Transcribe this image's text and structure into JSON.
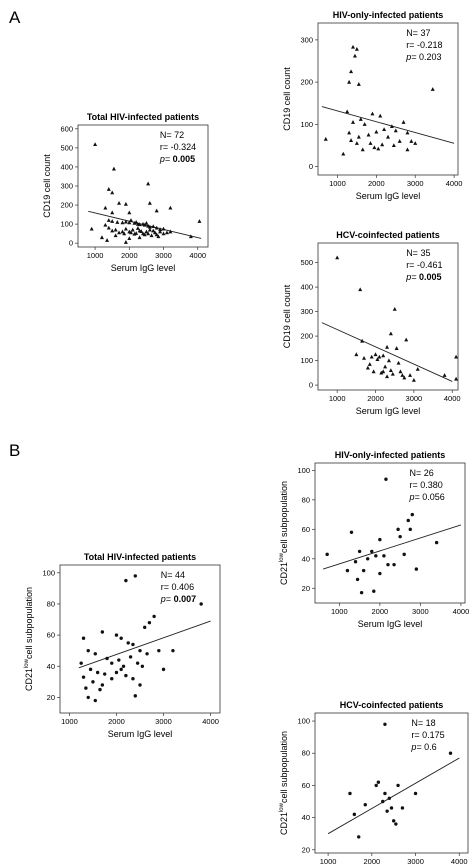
{
  "panel_labels": [
    "A",
    "B"
  ],
  "chart_data": [
    {
      "type": "scatter",
      "panel": "A",
      "title": "Total HIV-infected patients",
      "xlabel": "Serum IgG level",
      "ylabel": "CD19 cell count",
      "ylabel_sup": "",
      "xlim": [
        500,
        4300
      ],
      "ylim": [
        -20,
        620
      ],
      "xticks": [
        1000,
        2000,
        3000,
        4000
      ],
      "yticks": [
        0,
        100,
        200,
        300,
        400,
        500,
        600
      ],
      "grid": false,
      "marker": "triangle",
      "stats": {
        "n": "N= 72",
        "r": "r= -0.324",
        "p_label": "p=",
        "p_value": "0.005",
        "p_bold": true
      },
      "regression": {
        "x": [
          800,
          4100
        ],
        "y": [
          167,
          25
        ]
      },
      "points": [
        [
          1000,
          518
        ],
        [
          1550,
          390
        ],
        [
          1400,
          283
        ],
        [
          1500,
          265
        ],
        [
          2550,
          312
        ],
        [
          1700,
          210
        ],
        [
          1900,
          205
        ],
        [
          2600,
          210
        ],
        [
          1300,
          185
        ],
        [
          1500,
          160
        ],
        [
          2000,
          160
        ],
        [
          2800,
          170
        ],
        [
          3200,
          185
        ],
        [
          900,
          75
        ],
        [
          1400,
          120
        ],
        [
          1500,
          115
        ],
        [
          1650,
          110
        ],
        [
          1800,
          108
        ],
        [
          1900,
          112
        ],
        [
          2000,
          108
        ],
        [
          2050,
          120
        ],
        [
          2150,
          105
        ],
        [
          2200,
          110
        ],
        [
          2250,
          100
        ],
        [
          2300,
          98
        ],
        [
          2400,
          100
        ],
        [
          2450,
          95
        ],
        [
          2500,
          105
        ],
        [
          2550,
          90
        ],
        [
          2600,
          85
        ],
        [
          2700,
          88
        ],
        [
          2800,
          80
        ],
        [
          2900,
          72
        ],
        [
          3000,
          75
        ],
        [
          1300,
          95
        ],
        [
          1400,
          80
        ],
        [
          1500,
          65
        ],
        [
          1600,
          70
        ],
        [
          1700,
          55
        ],
        [
          1800,
          60
        ],
        [
          1850,
          50
        ],
        [
          1900,
          75
        ],
        [
          2000,
          60
        ],
        [
          2050,
          55
        ],
        [
          2100,
          70
        ],
        [
          2150,
          48
        ],
        [
          2200,
          52
        ],
        [
          2250,
          78
        ],
        [
          2300,
          65
        ],
        [
          2350,
          62
        ],
        [
          2400,
          50
        ],
        [
          2450,
          45
        ],
        [
          2500,
          60
        ],
        [
          2550,
          50
        ],
        [
          2600,
          70
        ],
        [
          2650,
          40
        ],
        [
          2700,
          65
        ],
        [
          2750,
          55
        ],
        [
          2800,
          45
        ],
        [
          2850,
          35
        ],
        [
          2900,
          60
        ],
        [
          3000,
          50
        ],
        [
          3100,
          55
        ],
        [
          3200,
          60
        ],
        [
          1200,
          30
        ],
        [
          1350,
          15
        ],
        [
          1600,
          40
        ],
        [
          2000,
          25
        ],
        [
          3800,
          35
        ],
        [
          4050,
          115
        ],
        [
          1900,
          5
        ],
        [
          2300,
          30
        ]
      ]
    },
    {
      "type": "scatter",
      "panel": "A",
      "title": "HIV-only-infected patients",
      "xlabel": "Serum IgG level",
      "ylabel": "CD19 cell count",
      "ylabel_sup": "",
      "xlim": [
        500,
        4100
      ],
      "ylim": [
        -20,
        340
      ],
      "xticks": [
        1000,
        2000,
        3000,
        4000
      ],
      "yticks": [
        0,
        100,
        200,
        300
      ],
      "grid": false,
      "marker": "triangle",
      "stats": {
        "n": "N= 37",
        "r": "r= -0.218",
        "p_label": "p=",
        "p_value": "0.203",
        "p_bold": false
      },
      "regression": {
        "x": [
          600,
          4000
        ],
        "y": [
          142,
          55
        ]
      },
      "points": [
        [
          1400,
          283
        ],
        [
          1500,
          278
        ],
        [
          1450,
          262
        ],
        [
          1350,
          225
        ],
        [
          1300,
          200
        ],
        [
          1550,
          195
        ],
        [
          3450,
          183
        ],
        [
          1250,
          130
        ],
        [
          1900,
          125
        ],
        [
          2100,
          120
        ],
        [
          1600,
          112
        ],
        [
          2700,
          105
        ],
        [
          1400,
          105
        ],
        [
          1700,
          100
        ],
        [
          2400,
          95
        ],
        [
          2500,
          85
        ],
        [
          2200,
          88
        ],
        [
          2000,
          82
        ],
        [
          1300,
          80
        ],
        [
          2800,
          80
        ],
        [
          1800,
          75
        ],
        [
          1550,
          70
        ],
        [
          2300,
          70
        ],
        [
          700,
          65
        ],
        [
          1350,
          62
        ],
        [
          1500,
          55
        ],
        [
          1850,
          55
        ],
        [
          2150,
          52
        ],
        [
          2600,
          60
        ],
        [
          1950,
          45
        ],
        [
          2050,
          42
        ],
        [
          1650,
          40
        ],
        [
          2450,
          50
        ],
        [
          1150,
          30
        ],
        [
          2800,
          40
        ],
        [
          2900,
          60
        ],
        [
          3000,
          55
        ]
      ]
    },
    {
      "type": "scatter",
      "panel": "A",
      "title": "HCV-coinfected patients",
      "xlabel": "Serum IgG level",
      "ylabel": "CD19 cell count",
      "ylabel_sup": "",
      "xlim": [
        500,
        4150
      ],
      "ylim": [
        -20,
        580
      ],
      "xticks": [
        1000,
        2000,
        3000,
        4000
      ],
      "yticks": [
        0,
        100,
        200,
        300,
        400,
        500
      ],
      "grid": false,
      "marker": "triangle",
      "stats": {
        "n": "N= 35",
        "r": "r= -0.461",
        "p_label": "p=",
        "p_value": "0.005",
        "p_bold": true
      },
      "regression": {
        "x": [
          600,
          4000
        ],
        "y": [
          255,
          15
        ]
      },
      "points": [
        [
          1000,
          520
        ],
        [
          1600,
          390
        ],
        [
          2500,
          310
        ],
        [
          2400,
          210
        ],
        [
          2800,
          185
        ],
        [
          1650,
          180
        ],
        [
          2300,
          155
        ],
        [
          2550,
          150
        ],
        [
          2000,
          125
        ],
        [
          2200,
          120
        ],
        [
          2100,
          115
        ],
        [
          1500,
          125
        ],
        [
          1700,
          110
        ],
        [
          1900,
          115
        ],
        [
          2050,
          105
        ],
        [
          2350,
          100
        ],
        [
          2600,
          90
        ],
        [
          2250,
          75
        ],
        [
          1800,
          70
        ],
        [
          1950,
          55
        ],
        [
          2150,
          50
        ],
        [
          2400,
          60
        ],
        [
          2450,
          45
        ],
        [
          2650,
          55
        ],
        [
          2700,
          40
        ],
        [
          2900,
          40
        ],
        [
          3000,
          20
        ],
        [
          3100,
          65
        ],
        [
          3800,
          40
        ],
        [
          4100,
          115
        ],
        [
          4100,
          25
        ],
        [
          2200,
          55
        ],
        [
          2300,
          35
        ],
        [
          1850,
          85
        ],
        [
          2750,
          30
        ]
      ]
    },
    {
      "type": "scatter",
      "panel": "B",
      "title": "Total HIV-infected patients",
      "xlabel": "Serum IgG level",
      "ylabel": "CD21",
      "ylabel_sup": "low",
      "ylabel_suffix": "cell subpopulation",
      "xlim": [
        800,
        4200
      ],
      "ylim": [
        10,
        105
      ],
      "xticks": [
        1000,
        2000,
        3000,
        4000
      ],
      "yticks": [
        20,
        40,
        60,
        80,
        100
      ],
      "grid": false,
      "marker": "dot",
      "stats": {
        "n": "N= 44",
        "r": "r= 0.406",
        "p_label": "p=",
        "p_value": "0.007",
        "p_bold": true
      },
      "regression": {
        "x": [
          1200,
          4000
        ],
        "y": [
          39,
          69
        ]
      },
      "points": [
        [
          2400,
          98
        ],
        [
          2200,
          95
        ],
        [
          3800,
          80
        ],
        [
          2800,
          72
        ],
        [
          2700,
          68
        ],
        [
          2600,
          65
        ],
        [
          1300,
          58
        ],
        [
          1700,
          62
        ],
        [
          2000,
          60
        ],
        [
          2100,
          58
        ],
        [
          2250,
          55
        ],
        [
          2350,
          54
        ],
        [
          2500,
          50
        ],
        [
          2650,
          48
        ],
        [
          2900,
          50
        ],
        [
          3200,
          50
        ],
        [
          1400,
          50
        ],
        [
          1550,
          48
        ],
        [
          1800,
          45
        ],
        [
          1900,
          42
        ],
        [
          2050,
          44
        ],
        [
          2150,
          40
        ],
        [
          2300,
          46
        ],
        [
          2450,
          42
        ],
        [
          1250,
          42
        ],
        [
          1450,
          38
        ],
        [
          1600,
          36
        ],
        [
          1750,
          35
        ],
        [
          2000,
          36
        ],
        [
          2200,
          34
        ],
        [
          2350,
          32
        ],
        [
          1300,
          33
        ],
        [
          1500,
          30
        ],
        [
          1700,
          28
        ],
        [
          2500,
          28
        ],
        [
          1350,
          26
        ],
        [
          1650,
          25
        ],
        [
          1400,
          20
        ],
        [
          1550,
          18
        ],
        [
          2400,
          21
        ],
        [
          1900,
          32
        ],
        [
          2100,
          38
        ],
        [
          2550,
          40
        ],
        [
          3000,
          38
        ]
      ]
    },
    {
      "type": "scatter",
      "panel": "B",
      "title": "HIV-only-infected patients",
      "xlabel": "Serum IgG level",
      "ylabel": "CD21",
      "ylabel_sup": "low",
      "ylabel_suffix": "cell subpopulation",
      "xlim": [
        400,
        4100
      ],
      "ylim": [
        10,
        105
      ],
      "xticks": [
        1000,
        2000,
        3000,
        4000
      ],
      "yticks": [
        20,
        40,
        60,
        80,
        100
      ],
      "grid": false,
      "marker": "dot",
      "stats": {
        "n": "N= 26",
        "r": "r= 0.380",
        "p_label": "p=",
        "p_value": "0.056",
        "p_bold": false
      },
      "regression": {
        "x": [
          600,
          4000
        ],
        "y": [
          33,
          63
        ]
      },
      "points": [
        [
          2150,
          94
        ],
        [
          2800,
          70
        ],
        [
          2700,
          66
        ],
        [
          2750,
          60
        ],
        [
          2450,
          60
        ],
        [
          1300,
          58
        ],
        [
          2000,
          53
        ],
        [
          2500,
          55
        ],
        [
          1500,
          45
        ],
        [
          1800,
          45
        ],
        [
          1900,
          42
        ],
        [
          2100,
          42
        ],
        [
          2600,
          43
        ],
        [
          1400,
          38
        ],
        [
          1700,
          40
        ],
        [
          2200,
          36
        ],
        [
          2350,
          36
        ],
        [
          3400,
          51
        ],
        [
          700,
          43
        ],
        [
          1200,
          32
        ],
        [
          1600,
          32
        ],
        [
          2000,
          30
        ],
        [
          2900,
          33
        ],
        [
          1450,
          26
        ],
        [
          1550,
          17
        ],
        [
          1850,
          18
        ]
      ]
    },
    {
      "type": "scatter",
      "panel": "B",
      "title": "HCV-coinfected patients",
      "xlabel": "Serum IgG level",
      "ylabel": "CD21",
      "ylabel_sup": "low",
      "ylabel_suffix": "cell subpopulation",
      "xlim": [
        700,
        4200
      ],
      "ylim": [
        18,
        105
      ],
      "xticks": [
        1000,
        2000,
        3000,
        4000
      ],
      "yticks": [
        20,
        40,
        60,
        80,
        100
      ],
      "grid": false,
      "marker": "dot",
      "stats": {
        "n": "N= 18",
        "r": "r= 0.175",
        "p_label": "p=",
        "p_value": "0.6",
        "p_bold": false
      },
      "regression": {
        "x": [
          1000,
          4000
        ],
        "y": [
          30,
          77
        ]
      },
      "points": [
        [
          2300,
          98
        ],
        [
          3800,
          80
        ],
        [
          2150,
          62
        ],
        [
          2100,
          60
        ],
        [
          2600,
          60
        ],
        [
          2300,
          55
        ],
        [
          3000,
          55
        ],
        [
          2400,
          52
        ],
        [
          1850,
          48
        ],
        [
          2250,
          50
        ],
        [
          2450,
          46
        ],
        [
          2350,
          44
        ],
        [
          1600,
          42
        ],
        [
          2500,
          38
        ],
        [
          2550,
          36
        ],
        [
          1500,
          55
        ],
        [
          1700,
          28
        ],
        [
          2700,
          46
        ]
      ]
    }
  ]
}
